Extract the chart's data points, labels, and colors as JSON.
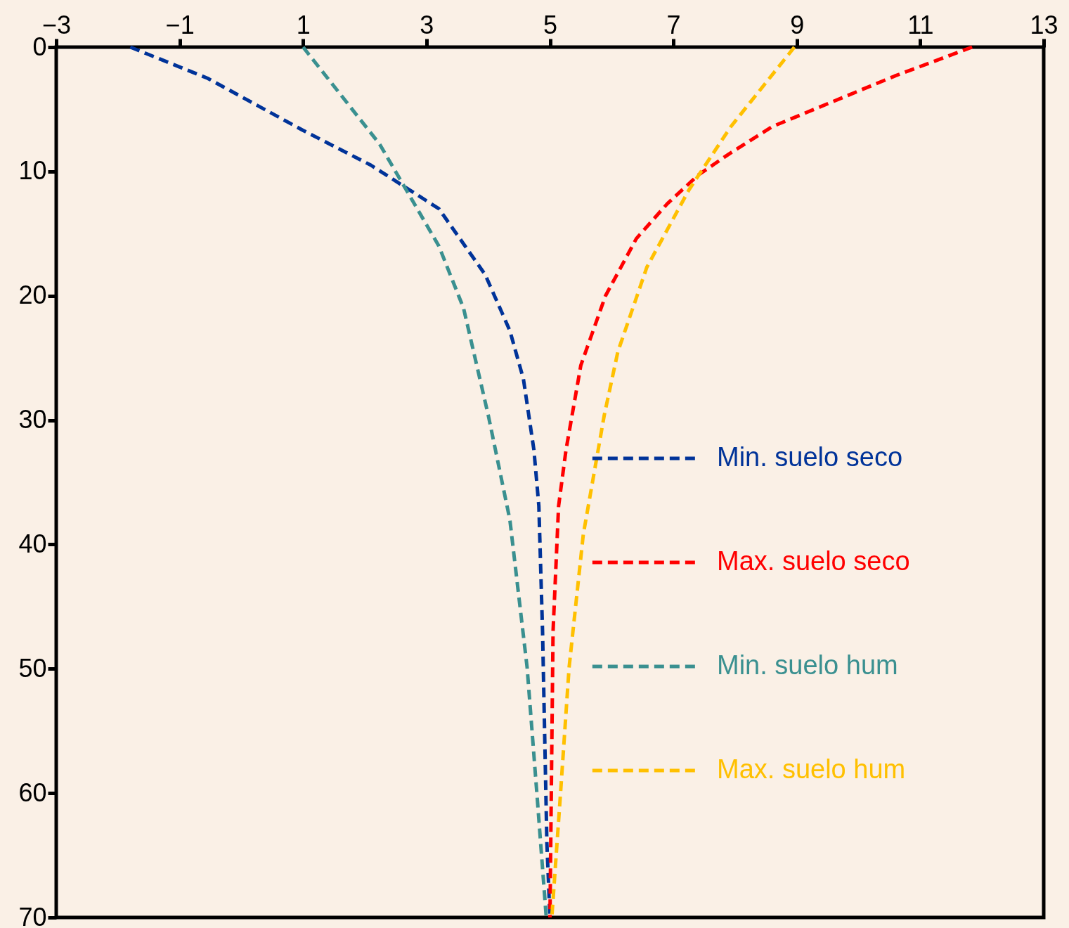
{
  "chart_data": {
    "type": "line",
    "xlim": [
      -3,
      13
    ],
    "xticks": [
      -3,
      -1,
      1,
      3,
      5,
      7,
      9,
      11,
      13
    ],
    "ylim": [
      70,
      0
    ],
    "yticks": [
      0,
      10,
      20,
      30,
      40,
      50,
      60,
      70
    ],
    "grid": false,
    "legend": "bottom right",
    "line_style": "dashed",
    "marker": "none",
    "series": [
      {
        "name": "Min. suelo seco",
        "color": "#003399",
        "x": [
          -1.8,
          -0.55,
          1.0,
          2.1,
          3.2,
          3.95,
          4.35,
          4.57,
          4.74,
          4.82,
          4.88,
          4.95,
          5.0
        ],
        "values": [
          0,
          2.5,
          6.7,
          9.5,
          13,
          18.3,
          22.8,
          26.7,
          32.4,
          36.9,
          47,
          64,
          70
        ]
      },
      {
        "name": "Max. suelo seco",
        "color": "#ff0000",
        "x": [
          11.84,
          10.6,
          8.6,
          7.9,
          7.4,
          6.9,
          6.4,
          5.9,
          5.5,
          5.26,
          5.14,
          5.05,
          5.0
        ],
        "values": [
          0,
          2.3,
          6.4,
          8.6,
          10.3,
          12.6,
          15.4,
          20,
          25.6,
          32.4,
          36.9,
          47,
          70
        ]
      },
      {
        "name": "Min. suelo hum",
        "color": "#3a9090",
        "x": [
          1.0,
          2.24,
          3.2,
          3.6,
          4.0,
          4.35,
          4.63,
          4.8,
          4.94
        ],
        "values": [
          0,
          7.8,
          16,
          21,
          29.6,
          38,
          49.9,
          60.8,
          70
        ]
      },
      {
        "name": "Max. suelo hum",
        "color": "#ffc000",
        "x": [
          8.96,
          7.93,
          7.25,
          6.57,
          6.1,
          5.88,
          5.54,
          5.31,
          5.17,
          5.03
        ],
        "values": [
          0,
          6.4,
          11.5,
          17.7,
          24.5,
          29.6,
          39.2,
          49.9,
          60.1,
          70
        ]
      }
    ]
  }
}
